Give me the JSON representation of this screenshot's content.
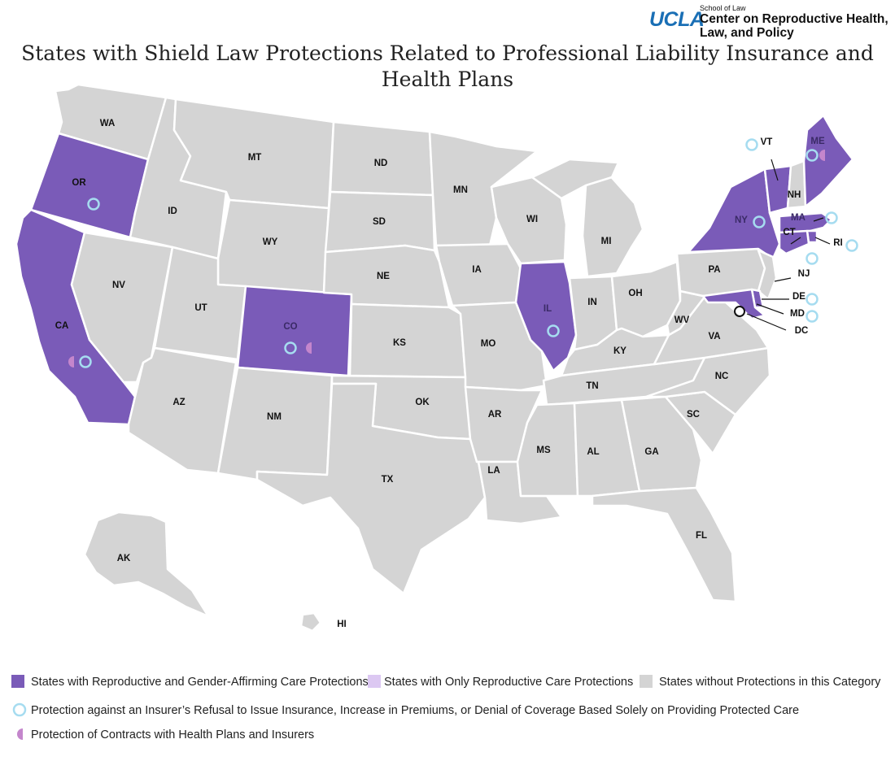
{
  "title": "States with Shield Law Protections Related to Professional Liability Insurance and Health Plans",
  "logo": {
    "ucla": "UCLA",
    "school": "School of Law",
    "center_line1": "Center on Reproductive Health,",
    "center_line2": "Law, and Policy"
  },
  "colors": {
    "repro_and_gender": "#7a5bb8",
    "repro_only": "#dcc8f2",
    "no_protection": "#d4d4d4",
    "insurer_circle": "#a6dcf0",
    "contracts_half": "#c486cc"
  },
  "states": {
    "with_repro_and_gender": [
      "OR",
      "CA",
      "CO",
      "IL",
      "NY",
      "VT",
      "ME",
      "MA",
      "CT",
      "RI",
      "MD",
      "DE"
    ],
    "with_only_repro": [],
    "insurer_refusal_protection": [
      "OR",
      "CA",
      "CO",
      "IL",
      "NY",
      "VT",
      "ME",
      "MA",
      "CT",
      "RI",
      "DE",
      "MD"
    ],
    "contracts_protection": [
      "CA",
      "CO",
      "ME"
    ]
  },
  "state_labels": [
    "WA",
    "OR",
    "CA",
    "NV",
    "ID",
    "MT",
    "WY",
    "UT",
    "AZ",
    "CO",
    "NM",
    "ND",
    "SD",
    "NE",
    "KS",
    "OK",
    "TX",
    "MN",
    "IA",
    "MO",
    "AR",
    "LA",
    "WI",
    "IL",
    "MI",
    "IN",
    "OH",
    "KY",
    "TN",
    "MS",
    "AL",
    "GA",
    "FL",
    "SC",
    "NC",
    "VA",
    "WV",
    "PA",
    "NY",
    "VT",
    "NH",
    "ME",
    "MA",
    "RI",
    "CT",
    "NJ",
    "DE",
    "MD",
    "DC",
    "AK",
    "HI"
  ],
  "legend": {
    "repro_and_gender": "States with Reproductive and Gender-Affirming Care Protections",
    "repro_only": "States with Only Reproductive Care Protections",
    "no_protection": "States without Protections in this Category",
    "insurer_refusal": "Protection against an Insurer’s Refusal to Issue Insurance, Increase in Premiums, or Denial of Coverage Based Solely on Providing Protected Care",
    "contracts": "Protection of Contracts with Health Plans and Insurers"
  }
}
